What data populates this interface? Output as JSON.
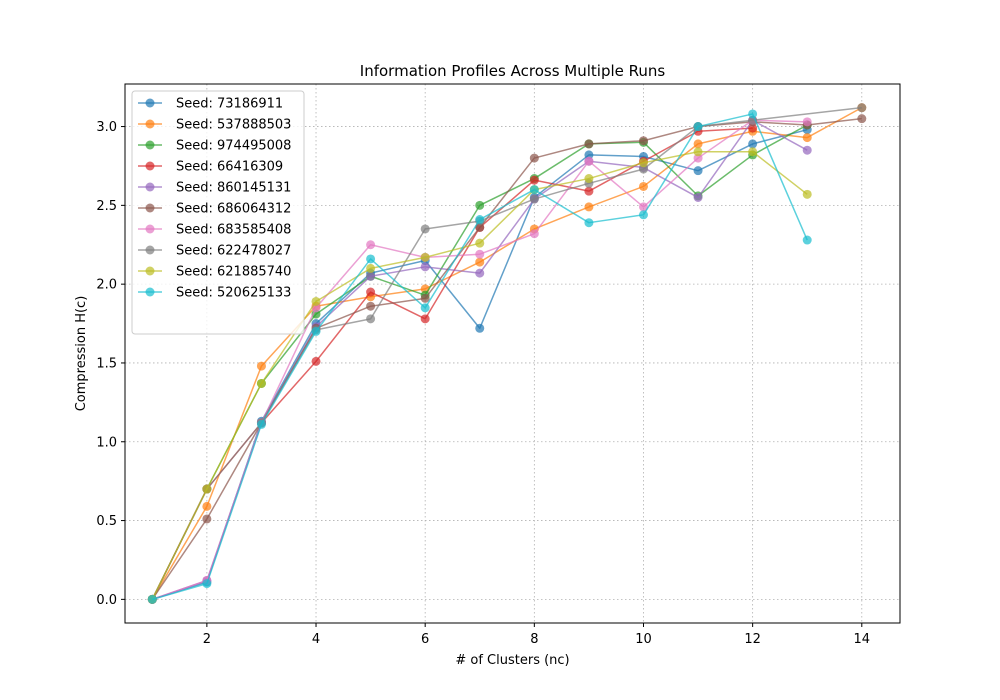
{
  "chart_data": {
    "type": "line",
    "title": "Information Profiles Across Multiple Runs",
    "xlabel": "# of Clusters (nc)",
    "ylabel": "Compression H(c)",
    "xlim": [
      0.5,
      14.7
    ],
    "ylim": [
      -0.15,
      3.27
    ],
    "xticks": [
      2,
      4,
      6,
      8,
      10,
      12,
      14
    ],
    "yticks": [
      0.0,
      0.5,
      1.0,
      1.5,
      2.0,
      2.5,
      3.0
    ],
    "ytick_labels": [
      "0.0",
      "0.5",
      "1.0",
      "1.5",
      "2.0",
      "2.5",
      "3.0"
    ],
    "grid": true,
    "legend_position": "top-left",
    "series": [
      {
        "name": "Seed: 73186911",
        "color": "#1f77b4",
        "x": [
          1,
          2,
          3,
          4,
          5,
          6,
          7,
          8,
          9,
          10,
          11,
          12,
          13
        ],
        "y": [
          0.0,
          0.11,
          1.13,
          1.75,
          2.07,
          2.15,
          1.72,
          2.55,
          2.82,
          2.81,
          2.72,
          2.89,
          2.98
        ]
      },
      {
        "name": "Seed: 537888503",
        "color": "#ff7f0e",
        "x": [
          1,
          2,
          3,
          4,
          5,
          6,
          7,
          8,
          9,
          10,
          11,
          12,
          13,
          14
        ],
        "y": [
          0.0,
          0.59,
          1.48,
          1.86,
          1.92,
          1.97,
          2.14,
          2.35,
          2.49,
          2.62,
          2.89,
          2.97,
          2.93,
          3.12
        ]
      },
      {
        "name": "Seed: 974495008",
        "color": "#2ca02c",
        "x": [
          1,
          2,
          3,
          4,
          5,
          6,
          7,
          8,
          9,
          10,
          11,
          12,
          13
        ],
        "y": [
          0.0,
          0.7,
          1.37,
          1.81,
          2.05,
          1.93,
          2.5,
          2.67,
          2.89,
          2.9,
          2.56,
          2.82,
          3.01
        ]
      },
      {
        "name": "Seed: 66416309",
        "color": "#d62728",
        "x": [
          1,
          2,
          3,
          4,
          5,
          6,
          7,
          8,
          9,
          10,
          11,
          12
        ],
        "y": [
          0.0,
          0.7,
          1.12,
          1.51,
          1.95,
          1.78,
          2.36,
          2.66,
          2.59,
          2.78,
          2.97,
          2.99
        ]
      },
      {
        "name": "Seed: 860145131",
        "color": "#9467bd",
        "x": [
          1,
          2,
          3,
          4,
          5,
          6,
          7,
          8,
          9,
          10,
          11,
          12,
          13
        ],
        "y": [
          0.0,
          0.12,
          1.12,
          1.73,
          2.05,
          2.11,
          2.07,
          2.54,
          2.78,
          2.74,
          2.55,
          3.04,
          2.85
        ]
      },
      {
        "name": "Seed: 686064312",
        "color": "#8c564b",
        "x": [
          1,
          2,
          3,
          4,
          5,
          6,
          7,
          8,
          9,
          10,
          11,
          12,
          13,
          14
        ],
        "y": [
          0.0,
          0.51,
          1.12,
          1.72,
          1.86,
          1.91,
          2.36,
          2.8,
          2.89,
          2.91,
          3.0,
          3.03,
          3.01,
          3.05
        ]
      },
      {
        "name": "Seed: 683585408",
        "color": "#e377c2",
        "x": [
          1,
          2,
          3,
          4,
          5,
          6,
          7,
          8,
          9,
          10,
          11,
          12,
          13
        ],
        "y": [
          0.0,
          0.12,
          1.12,
          1.85,
          2.25,
          2.17,
          2.19,
          2.32,
          2.78,
          2.49,
          2.8,
          3.04,
          3.03
        ]
      },
      {
        "name": "Seed: 622478027",
        "color": "#7f7f7f",
        "x": [
          1,
          2,
          3,
          4,
          5,
          6,
          7,
          8,
          9,
          10,
          11,
          12,
          14
        ],
        "y": [
          0.0,
          0.7,
          1.12,
          1.71,
          1.78,
          2.35,
          2.4,
          2.54,
          2.64,
          2.73,
          3.0,
          3.04,
          3.12
        ]
      },
      {
        "name": "Seed: 621885740",
        "color": "#bcbd22",
        "x": [
          1,
          2,
          3,
          4,
          5,
          6,
          7,
          8,
          9,
          10,
          11,
          12,
          13
        ],
        "y": [
          0.0,
          0.7,
          1.37,
          1.89,
          2.1,
          2.17,
          2.26,
          2.6,
          2.67,
          2.77,
          2.84,
          2.84,
          2.57
        ]
      },
      {
        "name": "Seed: 520625133",
        "color": "#17becf",
        "x": [
          1,
          2,
          3,
          4,
          5,
          6,
          7,
          8,
          9,
          10,
          11,
          12,
          13
        ],
        "y": [
          0.0,
          0.1,
          1.11,
          1.7,
          2.16,
          1.85,
          2.41,
          2.6,
          2.39,
          2.44,
          3.0,
          3.08,
          2.28
        ]
      }
    ]
  }
}
